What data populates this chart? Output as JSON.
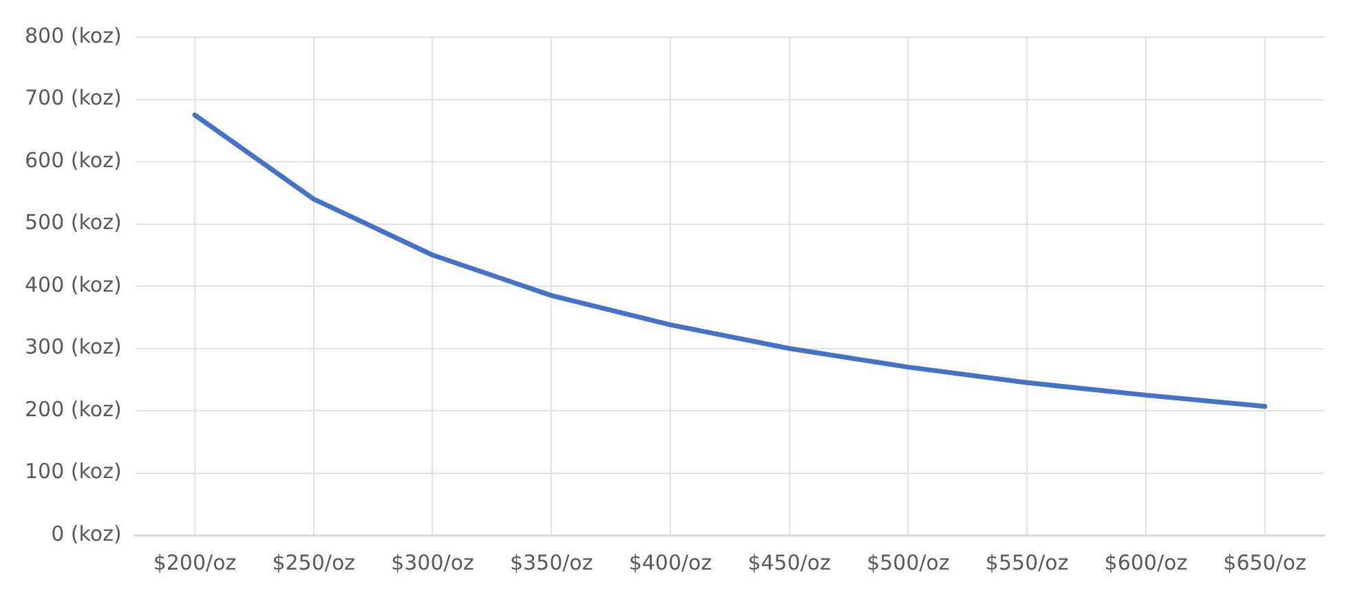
{
  "chart_data": {
    "type": "line",
    "categories": [
      "$200/oz",
      "$250/oz",
      "$300/oz",
      "$350/oz",
      "$400/oz",
      "$450/oz",
      "$500/oz",
      "$550/oz",
      "$600/oz",
      "$650/oz"
    ],
    "series": [
      {
        "color": "#4472c4",
        "values": [
          675,
          540,
          450,
          385,
          338,
          300,
          270,
          245,
          225,
          207
        ]
      }
    ],
    "ylim": [
      0,
      800
    ],
    "yticks": [
      {
        "value": 0,
        "label": "0 (koz)"
      },
      {
        "value": 100,
        "label": "100 (koz)"
      },
      {
        "value": 200,
        "label": "200 (koz)"
      },
      {
        "value": 300,
        "label": "300 (koz)"
      },
      {
        "value": 400,
        "label": "400 (koz)"
      },
      {
        "value": 500,
        "label": "500 (koz)"
      },
      {
        "value": 600,
        "label": "600 (koz)"
      },
      {
        "value": 700,
        "label": "700 (koz)"
      },
      {
        "value": 800,
        "label": "800 (koz)"
      }
    ],
    "grid": true,
    "legend": false,
    "marker": "none",
    "line_style": "solid"
  }
}
